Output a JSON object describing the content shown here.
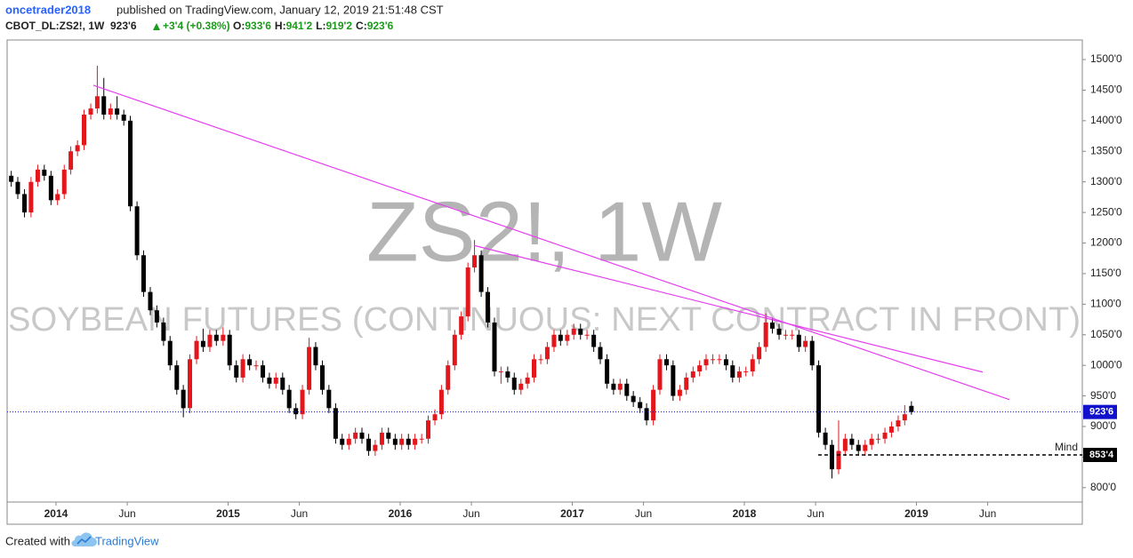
{
  "header": {
    "author": "oncetrader2018",
    "published": "published on TradingView.com, January 12, 2019 21:51:48 CST",
    "symbol": "CBOT_DL:ZS2!, 1W",
    "last": "923'6",
    "change": "+3'4 (+0.38%)",
    "ohlc": [
      {
        "label": "O:",
        "value": "933'6"
      },
      {
        "label": "H:",
        "value": "941'2"
      },
      {
        "label": "L:",
        "value": "919'2"
      },
      {
        "label": "C:",
        "value": "923'6"
      }
    ]
  },
  "chart_data": {
    "type": "candlestick",
    "watermark": "ZS2!, 1W",
    "subtitle": "SOYBEAN FUTURES (CONTINUOUS: NEXT CONTRACT IN FRONT)",
    "x": [
      2013.74,
      2013.778,
      2013.817,
      2013.855,
      2013.894,
      2013.932,
      2013.971,
      2014.009,
      2014.048,
      2014.086,
      2014.125,
      2014.163,
      2014.202,
      2014.24,
      2014.278,
      2014.317,
      2014.355,
      2014.394,
      2014.432,
      2014.471,
      2014.509,
      2014.548,
      2014.586,
      2014.625,
      2014.663,
      2014.702,
      2014.74,
      2014.778,
      2014.817,
      2014.855,
      2014.894,
      2014.932,
      2014.971,
      2015.009,
      2015.048,
      2015.086,
      2015.125,
      2015.163,
      2015.202,
      2015.24,
      2015.278,
      2015.317,
      2015.355,
      2015.394,
      2015.432,
      2015.471,
      2015.509,
      2015.548,
      2015.586,
      2015.625,
      2015.663,
      2015.702,
      2015.74,
      2015.778,
      2015.817,
      2015.855,
      2015.894,
      2015.932,
      2015.971,
      2016.009,
      2016.048,
      2016.086,
      2016.125,
      2016.163,
      2016.202,
      2016.24,
      2016.278,
      2016.317,
      2016.355,
      2016.394,
      2016.432,
      2016.471,
      2016.509,
      2016.548,
      2016.586,
      2016.625,
      2016.663,
      2016.702,
      2016.74,
      2016.778,
      2016.817,
      2016.855,
      2016.894,
      2016.932,
      2016.971,
      2017.009,
      2017.048,
      2017.086,
      2017.125,
      2017.163,
      2017.202,
      2017.24,
      2017.278,
      2017.317,
      2017.355,
      2017.394,
      2017.432,
      2017.471,
      2017.509,
      2017.548,
      2017.586,
      2017.625,
      2017.663,
      2017.702,
      2017.74,
      2017.778,
      2017.817,
      2017.855,
      2017.894,
      2017.932,
      2017.971,
      2018.009,
      2018.048,
      2018.086,
      2018.125,
      2018.163,
      2018.202,
      2018.24,
      2018.278,
      2018.317,
      2018.355,
      2018.394,
      2018.432,
      2018.471,
      2018.509,
      2018.548,
      2018.586,
      2018.625,
      2018.663,
      2018.702,
      2018.74,
      2018.778,
      2018.817,
      2018.855,
      2018.894,
      2018.932,
      2018.971
    ],
    "open": [
      1310,
      1300,
      1280,
      1250,
      1300,
      1320,
      1310,
      1270,
      1280,
      1320,
      1350,
      1360,
      1410,
      1420,
      1440,
      1410,
      1420,
      1410,
      1400,
      1260,
      1180,
      1120,
      1090,
      1070,
      1040,
      1000,
      960,
      930,
      1010,
      1040,
      1030,
      1050,
      1040,
      1050,
      1000,
      980,
      1010,
      1000,
      1000,
      980,
      970,
      980,
      960,
      930,
      920,
      960,
      1030,
      1000,
      960,
      930,
      880,
      870,
      880,
      890,
      880,
      860,
      870,
      890,
      880,
      870,
      880,
      870,
      880,
      880,
      910,
      920,
      960,
      1000,
      1050,
      1080,
      1160,
      1180,
      1120,
      1070,
      990,
      990,
      980,
      960,
      970,
      980,
      1010,
      1010,
      1030,
      1050,
      1040,
      1050,
      1060,
      1050,
      1050,
      1030,
      1010,
      970,
      960,
      970,
      950,
      940,
      930,
      910,
      960,
      1010,
      1000,
      950,
      960,
      980,
      990,
      1000,
      1010,
      1010,
      1010,
      1000,
      980,
      990,
      990,
      1010,
      1030,
      1070,
      1060,
      1050,
      1050,
      1050,
      1030,
      1040,
      1000,
      890,
      870,
      830,
      860,
      880,
      870,
      860,
      870,
      880,
      880,
      890,
      900,
      910,
      933.75
    ],
    "high": [
      1318,
      1308,
      1288,
      1308,
      1328,
      1328,
      1318,
      1288,
      1328,
      1358,
      1368,
      1418,
      1428,
      1490,
      1470,
      1428,
      1440,
      1418,
      1408,
      1268,
      1188,
      1128,
      1098,
      1078,
      1048,
      1008,
      968,
      1018,
      1048,
      1060,
      1058,
      1058,
      1062,
      1058,
      1008,
      1018,
      1018,
      1008,
      1008,
      988,
      988,
      988,
      968,
      938,
      968,
      1045,
      1038,
      1008,
      968,
      938,
      888,
      888,
      898,
      898,
      888,
      878,
      898,
      898,
      888,
      888,
      888,
      888,
      888,
      918,
      928,
      968,
      1008,
      1058,
      1088,
      1168,
      1205,
      1188,
      1128,
      1078,
      998,
      998,
      988,
      978,
      988,
      1018,
      1018,
      1038,
      1058,
      1058,
      1058,
      1068,
      1068,
      1058,
      1058,
      1038,
      1018,
      978,
      978,
      978,
      958,
      948,
      938,
      968,
      1018,
      1018,
      1008,
      968,
      988,
      998,
      1008,
      1018,
      1018,
      1018,
      1018,
      1008,
      998,
      998,
      1018,
      1038,
      1085,
      1078,
      1068,
      1058,
      1058,
      1058,
      1048,
      1048,
      1008,
      898,
      878,
      910,
      888,
      888,
      878,
      878,
      888,
      888,
      898,
      908,
      918,
      935,
      941.25
    ],
    "low": [
      1292,
      1272,
      1242,
      1242,
      1292,
      1302,
      1262,
      1262,
      1272,
      1312,
      1342,
      1352,
      1402,
      1412,
      1402,
      1402,
      1402,
      1392,
      1252,
      1172,
      1112,
      1082,
      1062,
      1032,
      992,
      952,
      915,
      922,
      1002,
      1022,
      1022,
      1032,
      1032,
      992,
      972,
      972,
      992,
      992,
      972,
      962,
      962,
      952,
      922,
      912,
      912,
      952,
      992,
      952,
      922,
      872,
      862,
      862,
      872,
      872,
      852,
      852,
      862,
      872,
      862,
      862,
      862,
      862,
      872,
      872,
      902,
      912,
      952,
      992,
      1042,
      1072,
      1152,
      1112,
      1062,
      982,
      970,
      972,
      952,
      952,
      962,
      972,
      1002,
      1002,
      1022,
      1032,
      1032,
      1042,
      1042,
      1042,
      1022,
      1002,
      962,
      952,
      952,
      942,
      932,
      922,
      902,
      902,
      952,
      992,
      942,
      942,
      952,
      972,
      982,
      992,
      1002,
      1002,
      992,
      972,
      972,
      982,
      982,
      1002,
      1022,
      1052,
      1042,
      1042,
      1042,
      1022,
      1022,
      992,
      882,
      862,
      815,
      822,
      852,
      862,
      852,
      852,
      862,
      872,
      872,
      882,
      892,
      902,
      919.25
    ],
    "close": [
      1300,
      1280,
      1250,
      1300,
      1320,
      1310,
      1270,
      1280,
      1320,
      1350,
      1360,
      1410,
      1420,
      1440,
      1410,
      1420,
      1410,
      1400,
      1260,
      1180,
      1120,
      1090,
      1070,
      1040,
      1000,
      960,
      930,
      1010,
      1040,
      1030,
      1050,
      1040,
      1050,
      1000,
      980,
      1010,
      1000,
      1000,
      980,
      970,
      980,
      960,
      930,
      920,
      960,
      1030,
      1000,
      960,
      930,
      880,
      870,
      880,
      890,
      880,
      860,
      870,
      890,
      880,
      870,
      880,
      870,
      880,
      880,
      910,
      920,
      960,
      1000,
      1050,
      1080,
      1160,
      1180,
      1120,
      1070,
      990,
      990,
      980,
      960,
      970,
      980,
      1010,
      1010,
      1030,
      1050,
      1040,
      1050,
      1060,
      1050,
      1050,
      1030,
      1010,
      970,
      960,
      970,
      950,
      940,
      930,
      910,
      960,
      1010,
      1000,
      950,
      960,
      980,
      990,
      1000,
      1010,
      1010,
      1010,
      1000,
      980,
      990,
      990,
      1010,
      1030,
      1070,
      1060,
      1050,
      1050,
      1050,
      1030,
      1040,
      1000,
      890,
      870,
      830,
      860,
      880,
      870,
      860,
      870,
      880,
      880,
      890,
      900,
      910,
      920,
      923.75
    ],
    "up_color": "#e3161b",
    "down_color": "#000000",
    "xlim": [
      2013.716,
      2019.964
    ],
    "xticks": [
      {
        "value": 2014,
        "label": "2014"
      },
      {
        "value": 2014.414,
        "label": "Jun"
      },
      {
        "value": 2015,
        "label": "2015"
      },
      {
        "value": 2015.414,
        "label": "Jun"
      },
      {
        "value": 2016,
        "label": "2016"
      },
      {
        "value": 2016.414,
        "label": "Jun"
      },
      {
        "value": 2017,
        "label": "2017"
      },
      {
        "value": 2017.414,
        "label": "Jun"
      },
      {
        "value": 2018,
        "label": "2018"
      },
      {
        "value": 2018.414,
        "label": "Jun"
      },
      {
        "value": 2019,
        "label": "2019"
      },
      {
        "value": 2019.414,
        "label": "Jun"
      }
    ],
    "ylim": [
      776.5,
      1532
    ],
    "yticks": [
      {
        "value": 800,
        "label": "800'0"
      },
      {
        "value": 850,
        "label": "850'0"
      },
      {
        "value": 900,
        "label": "900'0"
      },
      {
        "value": 950,
        "label": "950'0"
      },
      {
        "value": 1000,
        "label": "1000'0"
      },
      {
        "value": 1050,
        "label": "1050'0"
      },
      {
        "value": 1100,
        "label": "1100'0"
      },
      {
        "value": 1150,
        "label": "1150'0"
      },
      {
        "value": 1200,
        "label": "1200'0"
      },
      {
        "value": 1250,
        "label": "1250'0"
      },
      {
        "value": 1300,
        "label": "1300'0"
      },
      {
        "value": 1350,
        "label": "1350'0"
      },
      {
        "value": 1400,
        "label": "1400'0"
      },
      {
        "value": 1450,
        "label": "1450'0"
      },
      {
        "value": 1500,
        "label": "1500'0"
      }
    ],
    "trend_lines": [
      {
        "x": [
          2014.217,
          2019.54
        ],
        "y": [
          1458,
          944
        ],
        "color": "#e53df0"
      },
      {
        "x": [
          2016.429,
          2019.385
        ],
        "y": [
          1196,
          989
        ],
        "color": "#e53df0"
      }
    ],
    "last_price": {
      "value": 923.75,
      "label": "923'6",
      "color": "#1111cc"
    },
    "level": {
      "name": "Mind",
      "value": 853.5,
      "label": "853'4",
      "start": 2018.429,
      "color": "#000000"
    }
  },
  "footer": {
    "text": "Created with",
    "brand": "TradingView"
  }
}
